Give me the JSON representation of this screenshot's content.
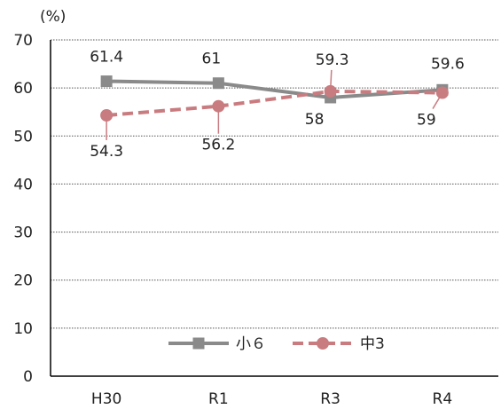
{
  "chart_data": {
    "type": "line",
    "unit_label": "(%)",
    "categories": [
      "H30",
      "R1",
      "R3",
      "R4"
    ],
    "ylim": [
      0,
      70
    ],
    "yticks": [
      0,
      10,
      20,
      30,
      40,
      50,
      60,
      70
    ],
    "grid": "horizontal dotted",
    "legend": "bottom-center",
    "series": [
      {
        "name": "小６",
        "values": [
          61.4,
          61,
          58,
          59.6
        ],
        "color": "#8a8a8a",
        "style": "solid",
        "marker": "square"
      },
      {
        "name": "中3",
        "values": [
          54.3,
          56.2,
          59.3,
          59
        ],
        "color": "#c97c80",
        "style": "dashed",
        "marker": "circle"
      }
    ]
  }
}
